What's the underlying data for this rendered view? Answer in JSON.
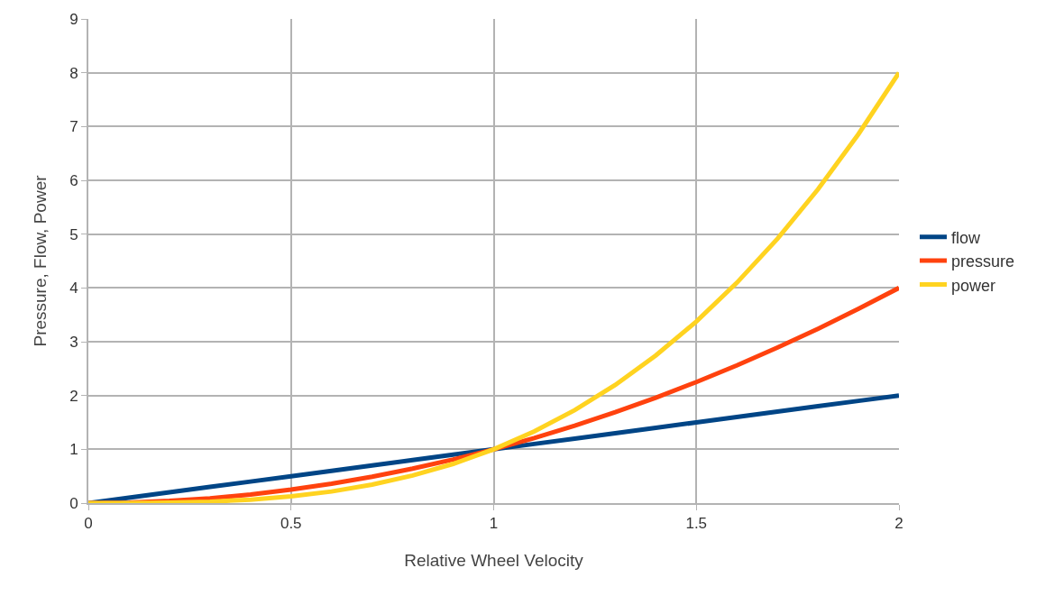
{
  "chart_data": {
    "type": "line",
    "xlabel": "Relative Wheel Velocity",
    "ylabel": "Pressure, Flow, Power",
    "x": [
      0,
      0.1,
      0.2,
      0.3,
      0.4,
      0.5,
      0.6,
      0.7,
      0.8,
      0.9,
      1,
      1.1,
      1.2,
      1.3,
      1.4,
      1.5,
      1.6,
      1.7,
      1.8,
      1.9,
      2
    ],
    "series": [
      {
        "name": "flow",
        "color": "#004586",
        "values": [
          0,
          0.1,
          0.2,
          0.3,
          0.4,
          0.5,
          0.6,
          0.7,
          0.8,
          0.9,
          1,
          1.1,
          1.2,
          1.3,
          1.4,
          1.5,
          1.6,
          1.7,
          1.8,
          1.9,
          2
        ]
      },
      {
        "name": "pressure",
        "color": "#ff420e",
        "values": [
          0,
          0.01,
          0.04,
          0.09,
          0.16,
          0.25,
          0.36,
          0.49,
          0.64,
          0.81,
          1,
          1.21,
          1.44,
          1.69,
          1.96,
          2.25,
          2.56,
          2.89,
          3.24,
          3.61,
          4
        ]
      },
      {
        "name": "power",
        "color": "#ffd320",
        "values": [
          0,
          0.001,
          0.008,
          0.027,
          0.064,
          0.125,
          0.216,
          0.343,
          0.512,
          0.729,
          1,
          1.331,
          1.728,
          2.197,
          2.744,
          3.375,
          4.096,
          4.913,
          5.832,
          6.859,
          8
        ]
      }
    ],
    "xlim": [
      0,
      2
    ],
    "xticks": [
      0,
      0.5,
      1,
      1.5,
      2
    ],
    "ylim": [
      0,
      9
    ],
    "yticks": [
      0,
      1,
      2,
      3,
      4,
      5,
      6,
      7,
      8,
      9
    ],
    "grid": true,
    "legend": "right",
    "marker": "none",
    "line_style": "solid"
  }
}
